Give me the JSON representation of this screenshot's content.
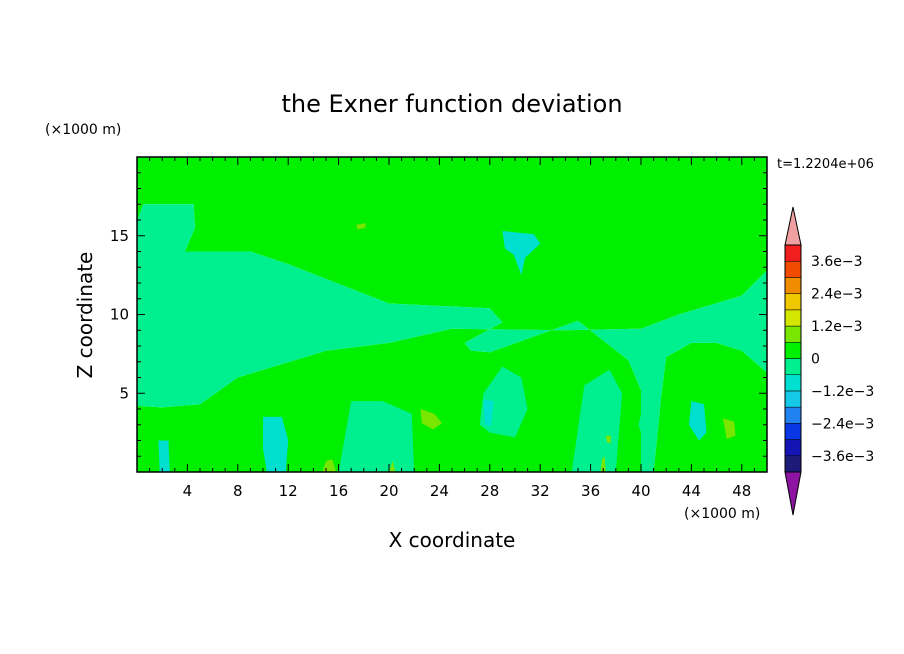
{
  "chart_data": {
    "type": "heatmap",
    "title": "the Exner function deviation",
    "xlabel": "X coordinate",
    "ylabel": "Z coordinate",
    "x_unit": "(×1000 m)",
    "y_unit": "(×1000 m)",
    "time_label": "t=1.2204e+06",
    "xlim": [
      0,
      50
    ],
    "ylim": [
      0,
      20
    ],
    "x_ticks": [
      4,
      8,
      12,
      16,
      20,
      24,
      28,
      32,
      36,
      40,
      44,
      48
    ],
    "y_ticks": [
      5,
      10,
      15
    ],
    "colorbar": {
      "levels": [
        -0.0042,
        -0.0036,
        -0.003,
        -0.0024,
        -0.0018,
        -0.0012,
        -0.0006,
        0,
        0.0006,
        0.0012,
        0.0018,
        0.0024,
        0.003,
        0.0036,
        0.0042
      ],
      "colors": [
        "#5a1a96",
        "#1c1c78",
        "#1414b4",
        "#0a37e6",
        "#1f82ef",
        "#14c8e6",
        "#00e0d0",
        "#00f090",
        "#00f000",
        "#78e600",
        "#d2e600",
        "#f0c800",
        "#f08c00",
        "#f04b00",
        "#f01e1e",
        "#dc0000"
      ],
      "under_color": "#8c14a0",
      "over_color": "#f0a0a0",
      "tick_labels": [
        "3.6e−3",
        "2.4e−3",
        "1.2e−3",
        "0",
        "−1.2e−3",
        "−2.4e−3",
        "−3.6e−3"
      ],
      "tick_values": [
        0.0036,
        0.0024,
        0.0012,
        0,
        -0.0012,
        -0.0024,
        -0.0036
      ]
    },
    "field_regions": [
      {
        "level": "0 to 6e-4",
        "color": "#00f000",
        "polygon": [
          [
            0,
            15.9
          ],
          [
            0.5,
            17
          ],
          [
            4.5,
            17
          ],
          [
            4.6,
            15.5
          ],
          [
            3.8,
            14
          ],
          [
            9,
            14
          ],
          [
            12,
            13.2
          ],
          [
            20,
            10.7
          ],
          [
            28,
            10.4
          ],
          [
            29,
            9.5
          ],
          [
            26,
            8.2
          ],
          [
            26.5,
            7.7
          ],
          [
            28,
            7.6
          ],
          [
            35,
            9.6
          ],
          [
            39,
            7.1
          ],
          [
            40,
            5.2
          ],
          [
            40,
            0
          ],
          [
            0,
            0
          ],
          [
            0,
            4.2
          ],
          [
            2,
            4.1
          ],
          [
            5,
            4.3
          ],
          [
            8,
            6
          ],
          [
            15,
            7.7
          ],
          [
            20,
            8.2
          ],
          [
            25,
            9.1
          ],
          [
            34,
            9
          ],
          [
            40,
            9.1
          ],
          [
            43,
            10
          ],
          [
            48,
            11.2
          ],
          [
            50,
            12.8
          ],
          [
            50,
            15
          ],
          [
            49,
            18.1
          ],
          [
            50,
            20
          ],
          [
            0,
            20
          ]
        ]
      },
      {
        "level": "0 to 6e-4",
        "color": "#00f000",
        "polygon": [
          [
            17,
            20
          ],
          [
            23,
            20
          ],
          [
            22.5,
            18.2
          ],
          [
            26,
            18.7
          ],
          [
            30,
            18.5
          ],
          [
            35.5,
            18.8
          ],
          [
            35.5,
            15.8
          ],
          [
            32,
            15
          ],
          [
            27,
            14.8
          ],
          [
            24,
            13.5
          ],
          [
            21,
            12.5
          ],
          [
            17,
            12.8
          ],
          [
            13,
            13.5
          ],
          [
            10,
            14.2
          ],
          [
            7,
            15.5
          ]
        ]
      },
      {
        "level": "0 to 6e-4",
        "color": "#00f000",
        "polygon": [
          [
            43.5,
            20
          ],
          [
            50,
            20
          ],
          [
            50,
            15
          ],
          [
            48,
            14.6
          ],
          [
            46,
            13.5
          ],
          [
            44.5,
            13.2
          ],
          [
            43.5,
            14.5
          ],
          [
            43.8,
            17
          ]
        ]
      },
      {
        "level": "0 to 6e-4",
        "color": "#00f000",
        "polygon": [
          [
            27,
            13.4
          ],
          [
            35,
            13.4
          ],
          [
            39,
            14.2
          ],
          [
            42,
            15
          ],
          [
            42,
            12.6
          ],
          [
            38,
            12.2
          ],
          [
            34,
            12.4
          ],
          [
            30,
            12.6
          ]
        ]
      },
      {
        "level": "0 to 6e-4",
        "color": "#00f000",
        "polygon": [
          [
            41,
            0
          ],
          [
            50,
            0
          ],
          [
            50,
            6.3
          ],
          [
            48,
            7.7
          ],
          [
            46,
            8.2
          ],
          [
            44,
            8.2
          ],
          [
            42,
            7.3
          ],
          [
            41.6,
            4.8
          ]
        ]
      },
      {
        "level": "0 to 6e-4",
        "color": "#00f000",
        "polygon": [
          [
            5,
            0
          ],
          [
            10,
            0
          ],
          [
            10,
            3.9
          ],
          [
            8,
            4.1
          ],
          [
            5.5,
            4.2
          ]
        ]
      },
      {
        "level": "0 to 6e-4",
        "color": "#00f000",
        "polygon": [
          [
            12,
            0
          ],
          [
            15.5,
            0
          ],
          [
            16.3,
            6.5
          ],
          [
            16.6,
            7
          ],
          [
            14.2,
            7.4
          ],
          [
            12.8,
            5
          ]
        ]
      },
      {
        "level": "-6e-4 to 0",
        "color": "#00f090",
        "polygon": [
          [
            0,
            4.2
          ],
          [
            2,
            4.1
          ],
          [
            5,
            4.3
          ],
          [
            8,
            6
          ],
          [
            15,
            7.7
          ],
          [
            20,
            8.2
          ],
          [
            25,
            9.1
          ],
          [
            34,
            9
          ],
          [
            40,
            9.1
          ],
          [
            43,
            10
          ],
          [
            48,
            11.2
          ],
          [
            50,
            12.8
          ],
          [
            50,
            6.3
          ],
          [
            48,
            7.7
          ],
          [
            46,
            8.2
          ],
          [
            44,
            8.2
          ],
          [
            42,
            7.3
          ],
          [
            41.6,
            4.8
          ],
          [
            41,
            0
          ],
          [
            40,
            0
          ],
          [
            40,
            5.2
          ],
          [
            39,
            7.1
          ],
          [
            35,
            9.6
          ],
          [
            28,
            7.6
          ],
          [
            26.5,
            7.7
          ],
          [
            26,
            8.2
          ],
          [
            29,
            9.5
          ],
          [
            28,
            10.4
          ],
          [
            20,
            10.7
          ],
          [
            12,
            13.2
          ],
          [
            9,
            14
          ],
          [
            3.8,
            14
          ],
          [
            4.6,
            15.5
          ],
          [
            4.5,
            17
          ],
          [
            0.5,
            17
          ],
          [
            0,
            15.9
          ]
        ]
      },
      {
        "level": "-6e-4 to 0",
        "color": "#00f090",
        "polygon": [
          [
            28,
            2.5
          ],
          [
            30,
            2.2
          ],
          [
            31,
            4
          ],
          [
            30.5,
            6
          ],
          [
            29,
            6.7
          ],
          [
            27.5,
            5
          ],
          [
            27.2,
            3
          ]
        ]
      },
      {
        "level": "-6e-4 to 0",
        "color": "#00f090",
        "polygon": [
          [
            34.5,
            0
          ],
          [
            38,
            0
          ],
          [
            38.5,
            5
          ],
          [
            37.5,
            6.5
          ],
          [
            35.5,
            5.5
          ]
        ]
      },
      {
        "level": "-6e-4 to 0",
        "color": "#00f090",
        "polygon": [
          [
            16,
            0
          ],
          [
            22,
            0
          ],
          [
            21.8,
            3.7
          ],
          [
            19.5,
            4.5
          ],
          [
            17,
            4.5
          ]
        ]
      },
      {
        "level": "-6e-4 to 0",
        "color": "#00f090",
        "polygon": [
          [
            40.2,
            2
          ],
          [
            41.2,
            2.5
          ],
          [
            41.2,
            4.2
          ],
          [
            40.3,
            4.7
          ],
          [
            39.8,
            3
          ]
        ]
      },
      {
        "level": "-1.2e-3 to -6e-4",
        "color": "#00e0d0",
        "polygon": [
          [
            29,
            15.3
          ],
          [
            31.5,
            15.1
          ],
          [
            32,
            14.5
          ],
          [
            30.8,
            13.6
          ],
          [
            30.5,
            12.5
          ],
          [
            29.9,
            13.8
          ],
          [
            29.2,
            14.2
          ]
        ]
      },
      {
        "level": "-1.2e-3 to -6e-4",
        "color": "#00e0d0",
        "polygon": [
          [
            10,
            3.5
          ],
          [
            11.5,
            3.5
          ],
          [
            12,
            2
          ],
          [
            11.8,
            0
          ],
          [
            10.3,
            0
          ],
          [
            10,
            1.5
          ]
        ]
      },
      {
        "level": "-1.2e-3 to -6e-4",
        "color": "#00e0d0",
        "polygon": [
          [
            1.7,
            2
          ],
          [
            2.5,
            2
          ],
          [
            2.6,
            0
          ],
          [
            1.8,
            0
          ]
        ]
      },
      {
        "level": "-1.2e-3 to -6e-4",
        "color": "#00e0d0",
        "polygon": [
          [
            27.5,
            4.6
          ],
          [
            28.3,
            4.5
          ],
          [
            28.1,
            2.9
          ],
          [
            27.6,
            3
          ]
        ]
      },
      {
        "level": "-1.2e-3 to -6e-4",
        "color": "#00e0d0",
        "polygon": [
          [
            44,
            4.5
          ],
          [
            45,
            4.3
          ],
          [
            45.2,
            2.5
          ],
          [
            44.6,
            2
          ],
          [
            43.8,
            3
          ]
        ]
      },
      {
        "level": "6e-4 to 1.2e-3",
        "color": "#78e600",
        "polygon": [
          [
            22.5,
            4
          ],
          [
            23.6,
            3.7
          ],
          [
            24.2,
            3.1
          ],
          [
            23.5,
            2.7
          ],
          [
            22.6,
            3.1
          ]
        ]
      },
      {
        "level": "6e-4 to 1.2e-3",
        "color": "#78e600",
        "polygon": [
          [
            46.5,
            3.4
          ],
          [
            47.4,
            3.2
          ],
          [
            47.5,
            2.3
          ],
          [
            46.8,
            2.1
          ]
        ]
      },
      {
        "level": "6e-4 to 1.2e-3",
        "color": "#78e600",
        "polygon": [
          [
            17.4,
            15.7
          ],
          [
            18.2,
            15.8
          ],
          [
            18.1,
            15.5
          ],
          [
            17.5,
            15.4
          ]
        ]
      },
      {
        "level": "6e-4 to 1.2e-3",
        "color": "#78e600",
        "polygon": [
          [
            14.7,
            0
          ],
          [
            15.8,
            0
          ],
          [
            15.5,
            0.8
          ],
          [
            15,
            0.7
          ]
        ]
      },
      {
        "level": "6e-4 to 1.2e-3",
        "color": "#78e600",
        "polygon": [
          [
            37.2,
            2.3
          ],
          [
            37.6,
            2.3
          ],
          [
            37.6,
            1.8
          ],
          [
            37.3,
            1.9
          ]
        ]
      },
      {
        "level": "6e-4 to 1.2e-3",
        "color": "#78e600",
        "polygon": [
          [
            36.8,
            0
          ],
          [
            37.2,
            0
          ],
          [
            37.1,
            1
          ],
          [
            36.9,
            0.8
          ]
        ]
      },
      {
        "level": "6e-4 to 1.2e-3",
        "color": "#78e600",
        "polygon": [
          [
            20,
            0
          ],
          [
            20.5,
            0
          ],
          [
            20.3,
            0.7
          ]
        ]
      }
    ]
  }
}
